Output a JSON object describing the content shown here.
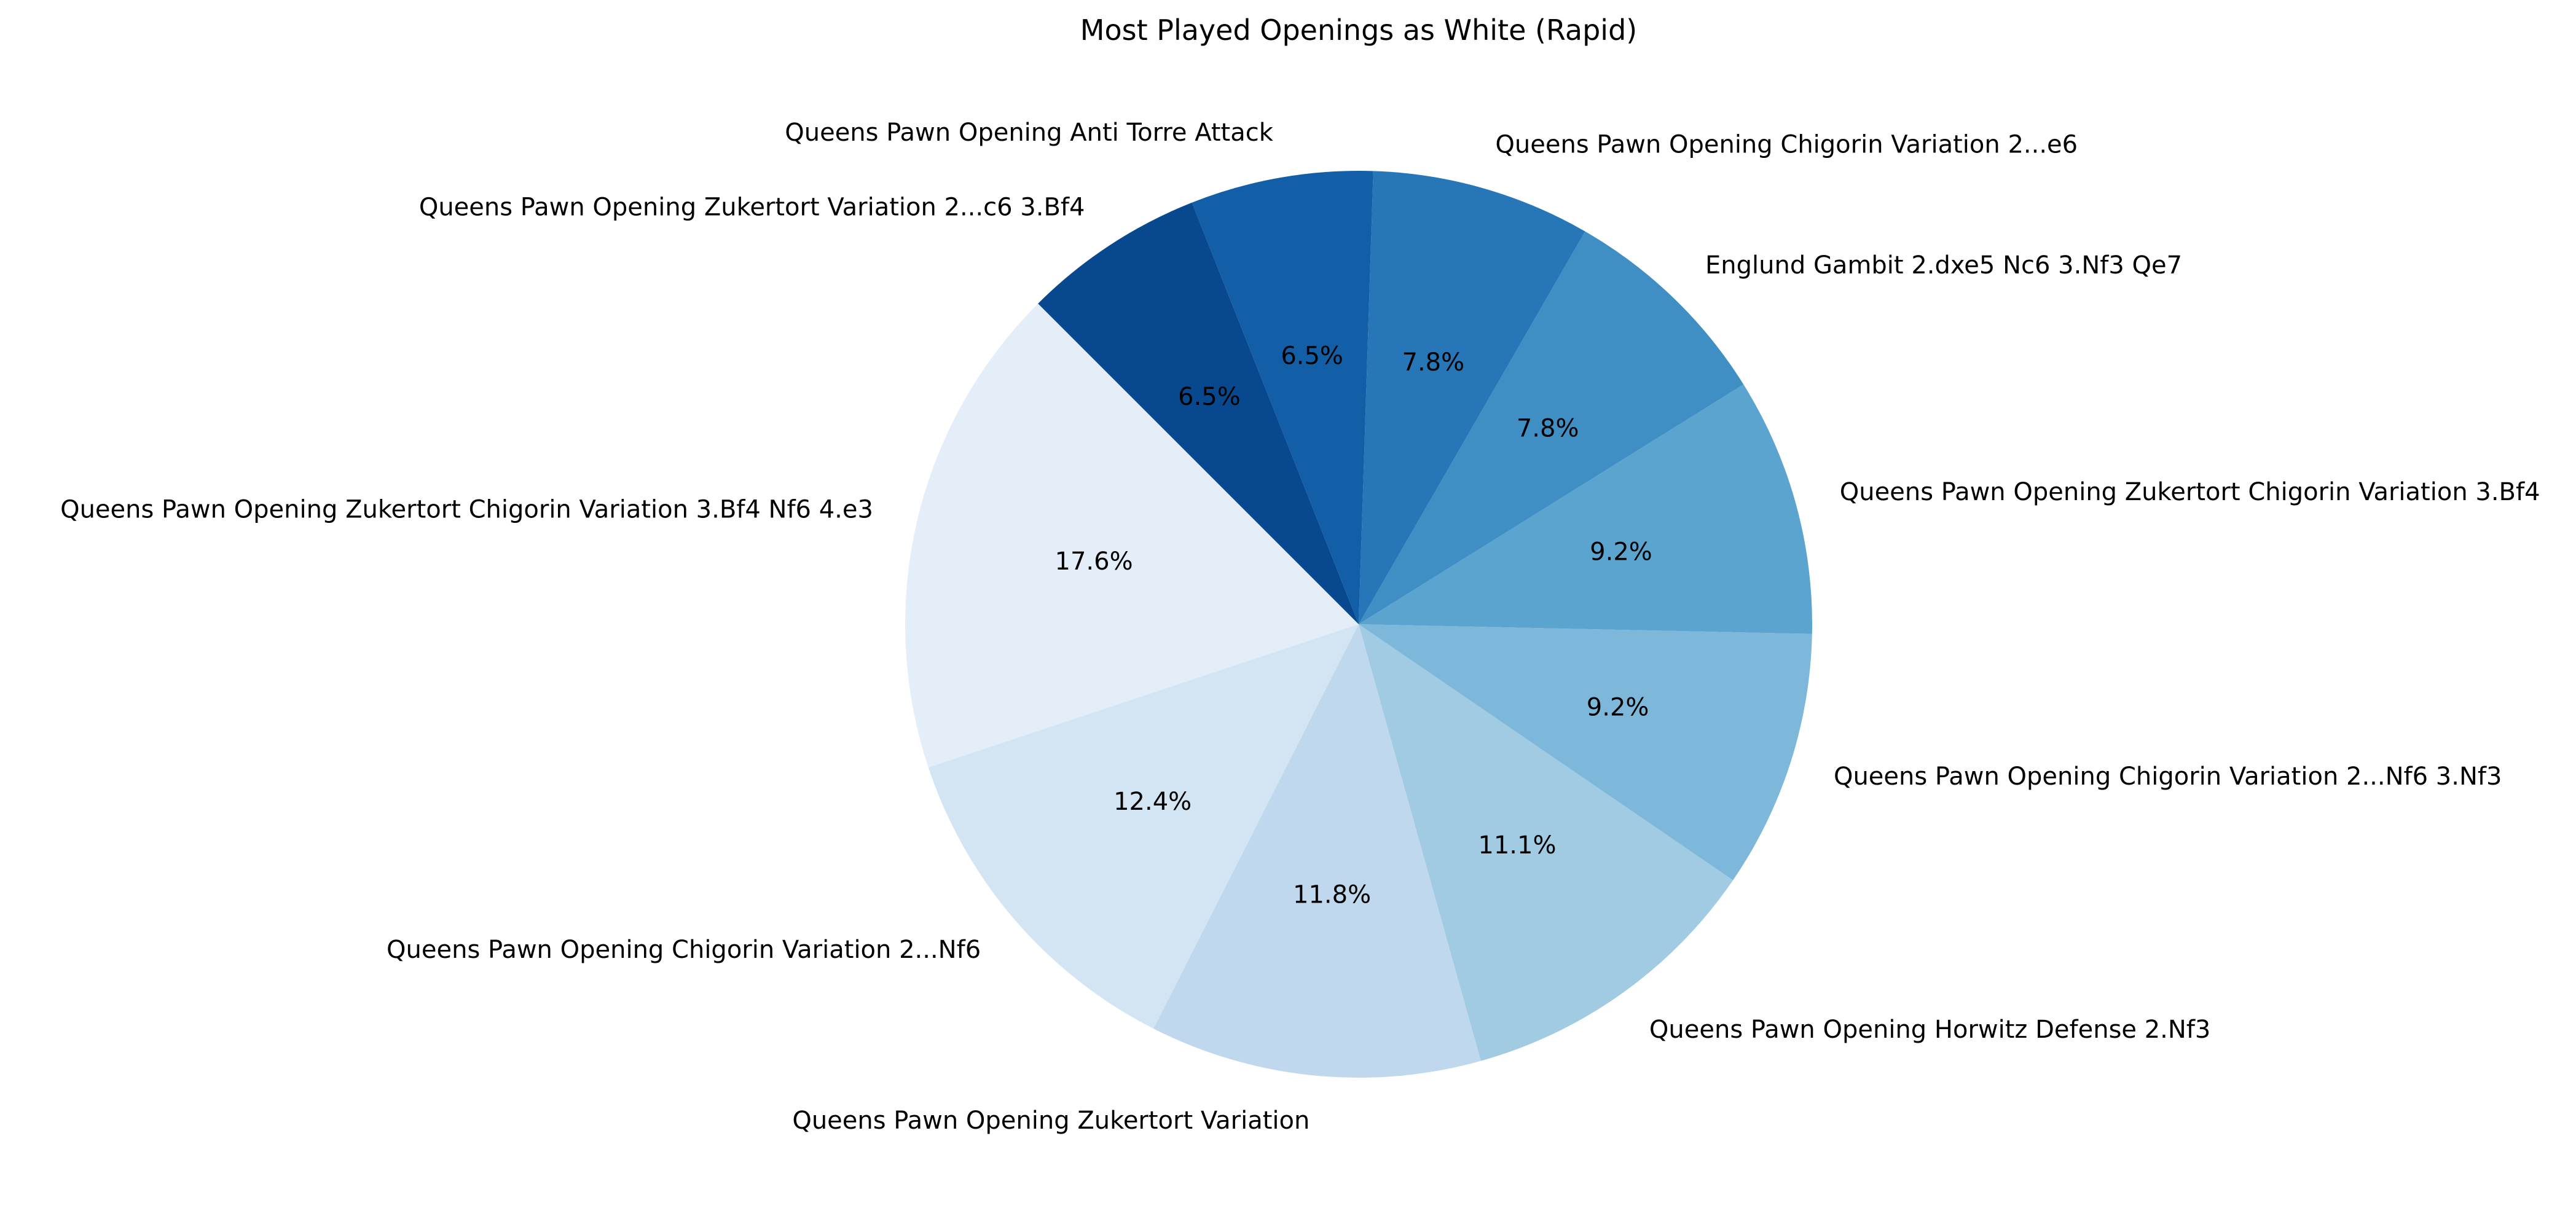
{
  "chart_data": {
    "type": "pie",
    "title": "Most Played Openings as White (Rapid)",
    "start_angle_deg": 135,
    "direction": "counterclockwise",
    "slices": [
      {
        "label": "Queens Pawn Opening Zukertort Chigorin Variation 3.Bf4 Nf6 4.e3",
        "value": 17.6,
        "pct_label": "17.6%",
        "color": "#e3eef8"
      },
      {
        "label": "Queens Pawn Opening Chigorin Variation 2...Nf6",
        "value": 12.4,
        "pct_label": "12.4%",
        "color": "#d3e4f3"
      },
      {
        "label": "Queens Pawn Opening Zukertort Variation",
        "value": 11.8,
        "pct_label": "11.8%",
        "color": "#bfd8ed"
      },
      {
        "label": "Queens Pawn Opening Horwitz Defense 2.Nf3",
        "value": 11.1,
        "pct_label": "11.1%",
        "color": "#a1cbe2"
      },
      {
        "label": "Queens Pawn Opening Chigorin Variation 2...Nf6 3.Nf3",
        "value": 9.2,
        "pct_label": "9.2%",
        "color": "#7db8da"
      },
      {
        "label": "Queens Pawn Opening Zukertort Chigorin Variation 3.Bf4",
        "value": 9.2,
        "pct_label": "9.2%",
        "color": "#5ca4d0"
      },
      {
        "label": "Englund Gambit 2.dxe5 Nc6 3.Nf3 Qe7",
        "value": 7.8,
        "pct_label": "7.8%",
        "color": "#3f8fc5"
      },
      {
        "label": "Queens Pawn Opening Chigorin Variation 2...e6",
        "value": 7.8,
        "pct_label": "7.8%",
        "color": "#2676b8"
      },
      {
        "label": "Queens Pawn Opening Anti Torre Attack",
        "value": 6.5,
        "pct_label": "6.5%",
        "color": "#135fa7"
      },
      {
        "label": "Queens Pawn Opening Zukertort Variation 2...c6 3.Bf4",
        "value": 6.5,
        "pct_label": "6.5%",
        "color": "#08488e"
      }
    ]
  }
}
